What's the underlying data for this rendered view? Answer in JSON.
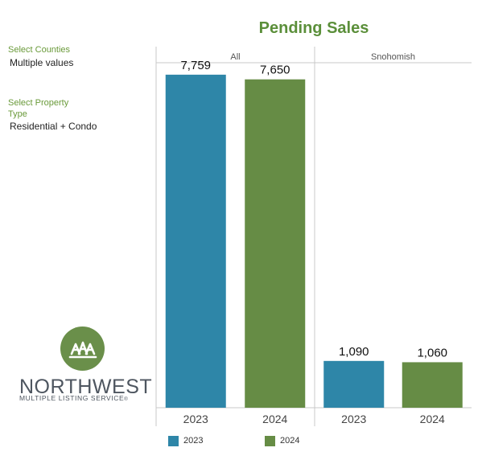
{
  "filters": {
    "counties_label": "Select Counties",
    "counties_value": "Multiple values",
    "type_label": "Select Property Type",
    "type_value": "Residential + Condo"
  },
  "logo": {
    "name": "NORTHWEST",
    "subtitle": "MULTIPLE LISTING SERVICE",
    "color": "#6a8f4a"
  },
  "colors": {
    "series_2023": "#2e86a8",
    "series_2024": "#668c45",
    "title": "#5b8f3a",
    "filter_label": "#6a9a3a"
  },
  "chart_data": {
    "type": "bar",
    "title": "Pending Sales",
    "panels": [
      {
        "label": "All",
        "categories": [
          "2023",
          "2024"
        ],
        "values": [
          7759,
          7650
        ]
      },
      {
        "label": "Snohomish",
        "categories": [
          "2023",
          "2024"
        ],
        "values": [
          1090,
          1060
        ]
      }
    ],
    "value_labels": [
      "7,759",
      "7,650",
      "1,090",
      "1,060"
    ],
    "legend": [
      "2023",
      "2024"
    ],
    "legend_position": "bottom",
    "ylim": [
      0,
      8000
    ],
    "grid": false
  }
}
